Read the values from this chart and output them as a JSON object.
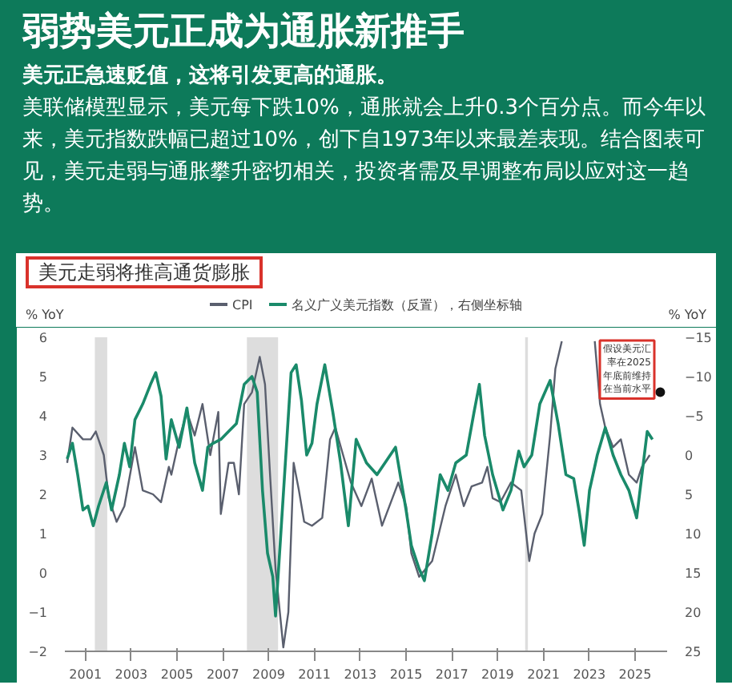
{
  "chart_data": {
    "type": "line",
    "title": "弱势美元正成为通胀新推手",
    "subtitle": "美元正急速贬值，这将引发更高的通胀。",
    "annotations": [
      "美联储模型显示，美元每下跌10%，通胀就会上升0.3个百分点。而今年以来，美元指数跌幅已超过10%，创下自1973年以来最差表现。结合图表可见，美元走弱与通胀攀升密切相关，投资者需及早调整布局以应对这一趋势。",
      "美元走弱将推高通货膨胀",
      "假设美元汇率在2025年底前维持在当前水平"
    ],
    "ylabel": "% YoY",
    "y2label": "% YoY",
    "legend": "top",
    "xlim": [
      2000.1,
      2026.4
    ],
    "xticks": [
      2001,
      2003,
      2005,
      2007,
      2009,
      2011,
      2013,
      2015,
      2017,
      2019,
      2021,
      2023,
      2025
    ],
    "ylim": [
      -2,
      6
    ],
    "yticks": [
      -2,
      -1,
      0,
      1,
      2,
      3,
      4,
      5,
      6
    ],
    "y2lim": [
      25,
      -15
    ],
    "y2ticks": [
      -15,
      -10,
      -5,
      0,
      5,
      10,
      15,
      20,
      25
    ],
    "bands": [
      {
        "axis": "x",
        "from": 2001.41,
        "to": 2001.95,
        "color": "#dddddd"
      },
      {
        "axis": "x",
        "from": 2008.05,
        "to": 2009.41,
        "color": "#dddddd"
      },
      {
        "axis": "x",
        "from": 2020.2,
        "to": 2020.32,
        "color": "#dddddd"
      }
    ],
    "series": [
      {
        "name": "CPI",
        "color": "#5a5f6e",
        "x": [
          2000.2,
          2000.43,
          2000.89,
          2001.23,
          2001.45,
          2001.8,
          2002.02,
          2002.36,
          2002.7,
          2003.16,
          2003.5,
          2003.95,
          2004.3,
          2004.64,
          2004.75,
          2005.09,
          2005.43,
          2005.77,
          2006.11,
          2006.45,
          2006.8,
          2006.91,
          2007.25,
          2007.48,
          2007.7,
          2007.93,
          2008.27,
          2008.61,
          2008.84,
          2009.07,
          2009.3,
          2009.64,
          2009.86,
          2010.09,
          2010.32,
          2010.55,
          2010.89,
          2011.34,
          2011.68,
          2011.91,
          2012.25,
          2012.59,
          2013.05,
          2013.5,
          2013.95,
          2014.66,
          2015.0,
          2015.23,
          2015.57,
          2016.14,
          2016.72,
          2017.17,
          2017.52,
          2017.86,
          2018.32,
          2018.55,
          2018.78,
          2019.12,
          2019.58,
          2020.03,
          2020.38,
          2020.61,
          2020.95,
          2021.29,
          2021.52,
          2021.8,
          2022.5,
          2023.24,
          2023.47,
          2023.7,
          2024.04,
          2024.38,
          2024.73,
          2025.07,
          2025.3,
          2025.53,
          2025.64
        ],
        "values": [
          2.8,
          3.7,
          3.4,
          3.4,
          3.6,
          3.0,
          1.9,
          1.3,
          1.7,
          3.2,
          2.1,
          2.0,
          1.8,
          2.7,
          2.5,
          3.4,
          4.1,
          3.5,
          4.3,
          3.0,
          4.1,
          1.5,
          2.8,
          2.8,
          2.0,
          4.3,
          4.6,
          5.5,
          4.8,
          2.4,
          0.1,
          -1.9,
          -1.0,
          2.8,
          2.1,
          1.3,
          1.2,
          1.4,
          3.4,
          3.7,
          3.0,
          2.3,
          1.7,
          2.4,
          1.2,
          2.3,
          1.7,
          0.5,
          -0.1,
          0.3,
          1.7,
          2.5,
          1.7,
          2.2,
          2.3,
          2.7,
          1.9,
          1.8,
          2.3,
          2.1,
          0.3,
          1.0,
          1.5,
          3.5,
          5.2,
          5.9,
          null,
          5.9,
          4.3,
          3.7,
          3.2,
          3.4,
          2.5,
          2.3,
          2.7,
          2.9,
          3.0
        ]
      },
      {
        "name": "名义广义美元指数（反置），右侧坐标轴",
        "color": "#1a8a6a",
        "axis": "y2",
        "x": [
          2000.2,
          2000.43,
          2000.66,
          2000.89,
          2001.11,
          2001.34,
          2001.57,
          2001.91,
          2002.14,
          2002.48,
          2002.7,
          2002.93,
          2003.16,
          2003.5,
          2003.84,
          2004.07,
          2004.3,
          2004.52,
          2004.75,
          2005.09,
          2005.43,
          2005.77,
          2006.11,
          2006.34,
          2006.57,
          2006.91,
          2007.25,
          2007.59,
          2007.93,
          2008.27,
          2008.5,
          2008.73,
          2008.95,
          2009.18,
          2009.3,
          2009.52,
          2009.75,
          2009.98,
          2010.2,
          2010.43,
          2010.66,
          2010.89,
          2011.11,
          2011.45,
          2011.8,
          2012.14,
          2012.48,
          2012.82,
          2013.27,
          2013.73,
          2014.54,
          2015.0,
          2015.23,
          2015.57,
          2015.8,
          2016.14,
          2016.49,
          2016.83,
          2017.17,
          2017.63,
          2017.97,
          2018.2,
          2018.43,
          2018.78,
          2019.23,
          2019.58,
          2019.92,
          2020.15,
          2020.49,
          2020.84,
          2021.29,
          2021.64,
          2021.98,
          2022.32,
          2022.55,
          2022.78,
          2023.01,
          2023.35,
          2023.7,
          2024.04,
          2024.38,
          2024.73,
          2025.07,
          2025.3,
          2025.53,
          2025.76
        ],
        "values": [
          0.5,
          -1.5,
          2.5,
          7,
          6.5,
          9,
          6.5,
          3.5,
          7,
          2.5,
          -1.5,
          1.5,
          -4.5,
          -6.5,
          -9,
          -10.5,
          -7.5,
          0.5,
          -4.5,
          -1,
          -6,
          1,
          4.5,
          -1,
          -1.5,
          -2,
          -3,
          -4,
          -9,
          -10,
          -8,
          4.5,
          12.5,
          15.5,
          20.5,
          10.5,
          0,
          -10.5,
          -11.5,
          -7,
          0,
          -1.5,
          -6.5,
          -11.5,
          -5.5,
          1,
          9,
          -2,
          1,
          2.5,
          -1,
          7,
          11.5,
          14.5,
          16,
          10,
          2.5,
          4.5,
          1,
          0,
          -5.5,
          -9,
          -2.5,
          2.5,
          7,
          4.5,
          -0.5,
          1.5,
          0,
          -6.5,
          -9.5,
          -4,
          2.5,
          3,
          7,
          11.5,
          4.5,
          0,
          -3.5,
          0,
          2.5,
          4.5,
          8,
          2.5,
          -3,
          -2
        ]
      },
      {
        "type": "scatter",
        "marker": "circle",
        "color": "#111111",
        "axis": "y2",
        "x": [
          2026.1
        ],
        "values": [
          -8
        ]
      }
    ]
  }
}
